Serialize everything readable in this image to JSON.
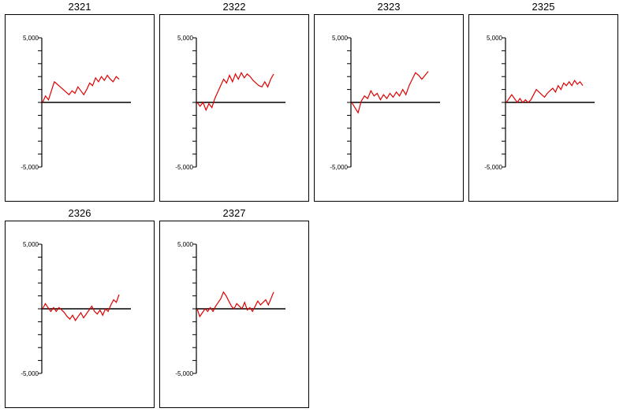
{
  "chart_data": [
    {
      "type": "line",
      "title": "2321",
      "ylim": [
        -5000,
        5000
      ],
      "y_tick_labels": [
        "5,000",
        "-5,000"
      ],
      "series": [
        {
          "color": "#e00000",
          "values": [
            0,
            500,
            200,
            900,
            1600,
            1400,
            1200,
            1000,
            800,
            600,
            900,
            700,
            1200,
            900,
            600,
            1000,
            1500,
            1300,
            1900,
            1600,
            2000,
            1700,
            2100,
            1800,
            1600,
            2000,
            1800
          ]
        }
      ]
    },
    {
      "type": "line",
      "title": "2322",
      "ylim": [
        -5000,
        5000
      ],
      "y_tick_labels": [
        "5,000",
        "-5,000"
      ],
      "series": [
        {
          "color": "#e00000",
          "values": [
            0,
            -300,
            0,
            -600,
            -100,
            -400,
            300,
            800,
            1300,
            1800,
            1500,
            2100,
            1600,
            2200,
            1800,
            2300,
            1900,
            2200,
            2000,
            1700,
            1500,
            1300,
            1200,
            1600,
            1200,
            1800,
            2200
          ]
        }
      ]
    },
    {
      "type": "line",
      "title": "2323",
      "ylim": [
        -5000,
        5000
      ],
      "y_tick_labels": [
        "5,000",
        "-5,000"
      ],
      "series": [
        {
          "color": "#e00000",
          "values": [
            0,
            -400,
            -800,
            100,
            500,
            300,
            900,
            500,
            700,
            200,
            600,
            300,
            700,
            400,
            800,
            500,
            1000,
            600,
            1300,
            1800,
            2300,
            2100,
            1800,
            2100,
            2400
          ]
        }
      ]
    },
    {
      "type": "line",
      "title": "2325",
      "ylim": [
        -5000,
        5000
      ],
      "y_tick_labels": [
        "5,000",
        "-5,000"
      ],
      "series": [
        {
          "color": "#e00000",
          "values": [
            0,
            300,
            600,
            300,
            0,
            300,
            0,
            200,
            0,
            200,
            600,
            1000,
            800,
            600,
            400,
            700,
            900,
            1100,
            800,
            1300,
            1000,
            1500,
            1300,
            1600,
            1300,
            1700,
            1400,
            1600,
            1300
          ]
        }
      ]
    },
    {
      "type": "line",
      "title": "2326",
      "ylim": [
        -5000,
        5000
      ],
      "y_tick_labels": [
        "5,000",
        "-5,000"
      ],
      "series": [
        {
          "color": "#e00000",
          "values": [
            0,
            400,
            100,
            -200,
            100,
            -200,
            100,
            -100,
            -300,
            -600,
            -800,
            -500,
            -900,
            -600,
            -300,
            -700,
            -400,
            -100,
            200,
            -200,
            -400,
            -100,
            -500,
            0,
            -200,
            300,
            700,
            500,
            1100
          ]
        }
      ]
    },
    {
      "type": "line",
      "title": "2327",
      "ylim": [
        -5000,
        5000
      ],
      "y_tick_labels": [
        "5,000",
        "-5,000"
      ],
      "series": [
        {
          "color": "#e00000",
          "values": [
            0,
            -600,
            -300,
            0,
            -200,
            100,
            -200,
            200,
            500,
            800,
            1300,
            1000,
            600,
            200,
            0,
            400,
            200,
            0,
            500,
            -100,
            100,
            -200,
            200,
            600,
            300,
            500,
            700,
            300,
            800,
            1300
          ]
        }
      ]
    }
  ]
}
